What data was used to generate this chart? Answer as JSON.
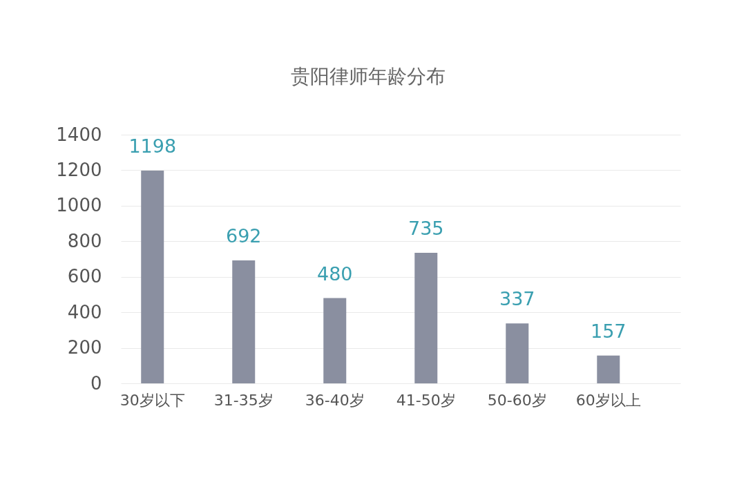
{
  "chart_data": {
    "type": "bar",
    "title": "贵阳律师年龄分布",
    "categories": [
      "30岁以下",
      "31-35岁",
      "36-40岁",
      "41-50岁",
      "50-60岁",
      "60岁以上"
    ],
    "values": [
      1198,
      692,
      480,
      735,
      337,
      157
    ],
    "color": "#8a8fa0",
    "ylim": [
      0,
      1400
    ],
    "yticks": [
      0,
      200,
      400,
      600,
      800,
      1000,
      1200,
      1400
    ],
    "grid": "y",
    "data_labels": true
  }
}
